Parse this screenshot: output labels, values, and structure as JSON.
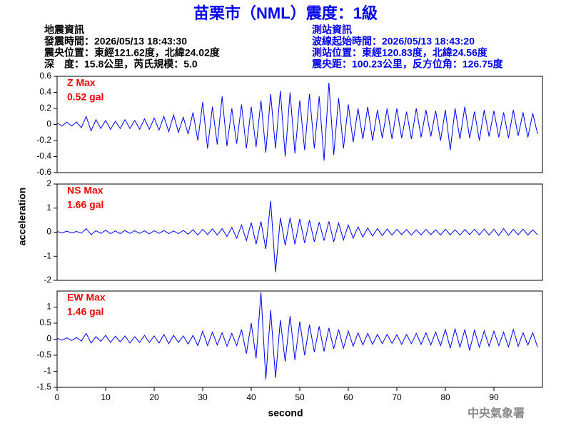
{
  "header": {
    "title": "苗栗市（NML）震度：1級",
    "left_info": [
      "地震資訊",
      "發震時間：2026/05/13 18:43:30",
      "震央位置：東經121.62度，北緯24.02度",
      "深　度：15.8公里，芮氏規模：5.0"
    ],
    "right_info": [
      "測站資訊",
      "波線起始時間：2026/05/13 18:43:20",
      "測站位置：東經120.83度，北緯24.56度",
      "震央距：100.23公里，反方位角：126.75度"
    ]
  },
  "chart_data": [
    {
      "type": "line",
      "label": "Z Max",
      "max_label": "0.52 gal",
      "xlim": [
        0,
        100
      ],
      "ylim": [
        -0.6,
        0.6
      ],
      "yticks": [
        -0.6,
        -0.4,
        -0.2,
        0,
        0.2,
        0.4,
        0.6
      ],
      "x": [
        0,
        1,
        2,
        3,
        4,
        5,
        6,
        7,
        8,
        9,
        10,
        11,
        12,
        13,
        14,
        15,
        16,
        17,
        18,
        19,
        20,
        21,
        22,
        23,
        24,
        25,
        26,
        27,
        28,
        29,
        30,
        31,
        32,
        33,
        34,
        35,
        36,
        37,
        38,
        39,
        40,
        41,
        42,
        43,
        44,
        45,
        46,
        47,
        48,
        49,
        50,
        51,
        52,
        53,
        54,
        55,
        56,
        57,
        58,
        59,
        60,
        61,
        62,
        63,
        64,
        65,
        66,
        67,
        68,
        69,
        70,
        71,
        72,
        73,
        74,
        75,
        76,
        77,
        78,
        79,
        80,
        81,
        82,
        83,
        84,
        85,
        86,
        87,
        88,
        89,
        90,
        91,
        92,
        93,
        94,
        95,
        96,
        97,
        98,
        99
      ],
      "series": [
        {
          "color": "#0000ff",
          "values": [
            0.02,
            -0.02,
            0.03,
            -0.02,
            0.03,
            -0.04,
            0.1,
            -0.08,
            0.06,
            -0.05,
            0.05,
            -0.06,
            0.04,
            -0.05,
            0.06,
            -0.05,
            0.05,
            -0.06,
            0.07,
            -0.06,
            0.08,
            -0.07,
            0.1,
            -0.09,
            0.12,
            -0.1,
            0.09,
            -0.12,
            0.15,
            -0.2,
            0.28,
            -0.3,
            0.22,
            -0.25,
            0.35,
            -0.27,
            0.2,
            -0.24,
            0.25,
            -0.3,
            0.22,
            -0.28,
            0.3,
            -0.35,
            0.38,
            -0.3,
            0.42,
            -0.4,
            0.4,
            -0.36,
            0.3,
            -0.32,
            0.38,
            -0.3,
            0.35,
            -0.45,
            0.52,
            -0.38,
            0.33,
            -0.3,
            0.25,
            -0.22,
            0.2,
            -0.18,
            0.22,
            -0.2,
            0.18,
            -0.17,
            0.2,
            -0.18,
            0.2,
            -0.17,
            0.16,
            -0.18,
            0.2,
            -0.16,
            0.18,
            -0.15,
            0.17,
            -0.2,
            0.18,
            -0.32,
            0.2,
            -0.18,
            0.22,
            -0.17,
            0.16,
            -0.2,
            0.18,
            -0.15,
            0.17,
            -0.16,
            0.15,
            -0.17,
            0.18,
            -0.14,
            0.15,
            -0.16,
            0.14,
            -0.12
          ]
        }
      ]
    },
    {
      "type": "line",
      "label": "NS Max",
      "max_label": "1.66 gal",
      "ylabel": "acceleration",
      "xlim": [
        0,
        100
      ],
      "ylim": [
        -2,
        2
      ],
      "yticks": [
        -2,
        -1,
        0,
        1,
        2
      ],
      "x": [
        0,
        1,
        2,
        3,
        4,
        5,
        6,
        7,
        8,
        9,
        10,
        11,
        12,
        13,
        14,
        15,
        16,
        17,
        18,
        19,
        20,
        21,
        22,
        23,
        24,
        25,
        26,
        27,
        28,
        29,
        30,
        31,
        32,
        33,
        34,
        35,
        36,
        37,
        38,
        39,
        40,
        41,
        42,
        43,
        44,
        45,
        46,
        47,
        48,
        49,
        50,
        51,
        52,
        53,
        54,
        55,
        56,
        57,
        58,
        59,
        60,
        61,
        62,
        63,
        64,
        65,
        66,
        67,
        68,
        69,
        70,
        71,
        72,
        73,
        74,
        75,
        76,
        77,
        78,
        79,
        80,
        81,
        82,
        83,
        84,
        85,
        86,
        87,
        88,
        89,
        90,
        91,
        92,
        93,
        94,
        95,
        96,
        97,
        98,
        99
      ],
      "series": [
        {
          "color": "#0000ff",
          "values": [
            0.03,
            -0.03,
            0.04,
            -0.03,
            0.03,
            -0.04,
            0.15,
            -0.1,
            0.06,
            -0.05,
            0.08,
            -0.06,
            0.05,
            -0.06,
            0.07,
            -0.05,
            0.06,
            -0.05,
            0.06,
            -0.07,
            0.06,
            -0.05,
            0.07,
            -0.06,
            0.05,
            -0.06,
            0.07,
            -0.08,
            0.1,
            -0.12,
            0.12,
            -0.1,
            0.14,
            -0.12,
            0.15,
            -0.18,
            0.2,
            -0.25,
            0.3,
            -0.35,
            0.4,
            -0.5,
            0.45,
            -0.7,
            1.3,
            -1.66,
            0.6,
            -0.55,
            0.6,
            -0.5,
            0.55,
            -0.45,
            0.5,
            -0.4,
            0.42,
            -0.35,
            0.45,
            -0.4,
            0.38,
            -0.32,
            0.3,
            -0.25,
            0.22,
            -0.2,
            0.18,
            -0.16,
            0.15,
            -0.14,
            0.13,
            -0.12,
            0.12,
            -0.1,
            0.11,
            -0.12,
            0.1,
            -0.11,
            0.12,
            -0.1,
            0.1,
            -0.12,
            0.12,
            -0.11,
            0.1,
            -0.12,
            0.11,
            -0.1,
            0.12,
            -0.11,
            0.13,
            -0.12,
            0.12,
            -0.14,
            0.15,
            -0.13,
            0.12,
            -0.11,
            0.13,
            -0.12,
            0.1,
            -0.11
          ]
        }
      ]
    },
    {
      "type": "line",
      "label": "EW Max",
      "max_label": "1.46 gal",
      "xlabel": "second",
      "xlim": [
        0,
        100
      ],
      "ylim": [
        -1.5,
        1.5
      ],
      "yticks": [
        -1.5,
        -1,
        -0.5,
        0,
        0.5,
        1
      ],
      "xticks": [
        0,
        10,
        20,
        30,
        40,
        50,
        60,
        70,
        80,
        90
      ],
      "x": [
        0,
        1,
        2,
        3,
        4,
        5,
        6,
        7,
        8,
        9,
        10,
        11,
        12,
        13,
        14,
        15,
        16,
        17,
        18,
        19,
        20,
        21,
        22,
        23,
        24,
        25,
        26,
        27,
        28,
        29,
        30,
        31,
        32,
        33,
        34,
        35,
        36,
        37,
        38,
        39,
        40,
        41,
        42,
        43,
        44,
        45,
        46,
        47,
        48,
        49,
        50,
        51,
        52,
        53,
        54,
        55,
        56,
        57,
        58,
        59,
        60,
        61,
        62,
        63,
        64,
        65,
        66,
        67,
        68,
        69,
        70,
        71,
        72,
        73,
        74,
        75,
        76,
        77,
        78,
        79,
        80,
        81,
        82,
        83,
        84,
        85,
        86,
        87,
        88,
        89,
        90,
        91,
        92,
        93,
        94,
        95,
        96,
        97,
        98,
        99
      ],
      "series": [
        {
          "color": "#0000ff",
          "values": [
            0.03,
            -0.03,
            0.04,
            -0.04,
            0.05,
            -0.06,
            0.18,
            -0.12,
            0.08,
            -0.07,
            0.12,
            -0.1,
            0.09,
            -0.08,
            0.1,
            -0.12,
            0.08,
            -0.1,
            0.12,
            -0.1,
            0.1,
            -0.12,
            0.15,
            -0.14,
            0.12,
            -0.1,
            0.1,
            -0.15,
            0.12,
            -0.2,
            0.25,
            -0.2,
            0.22,
            -0.18,
            0.2,
            -0.22,
            0.18,
            -0.2,
            0.3,
            -0.45,
            0.5,
            -0.6,
            1.46,
            -1.25,
            0.9,
            -1.2,
            0.6,
            -0.7,
            0.72,
            -0.65,
            0.55,
            -0.5,
            0.45,
            -0.4,
            0.4,
            -0.38,
            0.35,
            -0.3,
            0.3,
            -0.28,
            0.25,
            -0.22,
            0.2,
            -0.18,
            0.18,
            -0.16,
            0.15,
            -0.14,
            0.15,
            -0.13,
            0.14,
            -0.16,
            0.15,
            -0.14,
            0.18,
            -0.16,
            0.2,
            -0.18,
            0.22,
            -0.2,
            0.3,
            -0.28,
            0.32,
            -0.25,
            0.3,
            -0.35,
            0.28,
            -0.25,
            0.26,
            -0.22,
            0.25,
            -0.2,
            0.22,
            -0.24,
            0.3,
            -0.22,
            0.2,
            -0.18,
            0.2,
            -0.25
          ]
        }
      ]
    }
  ],
  "footer": "中央氣象署"
}
